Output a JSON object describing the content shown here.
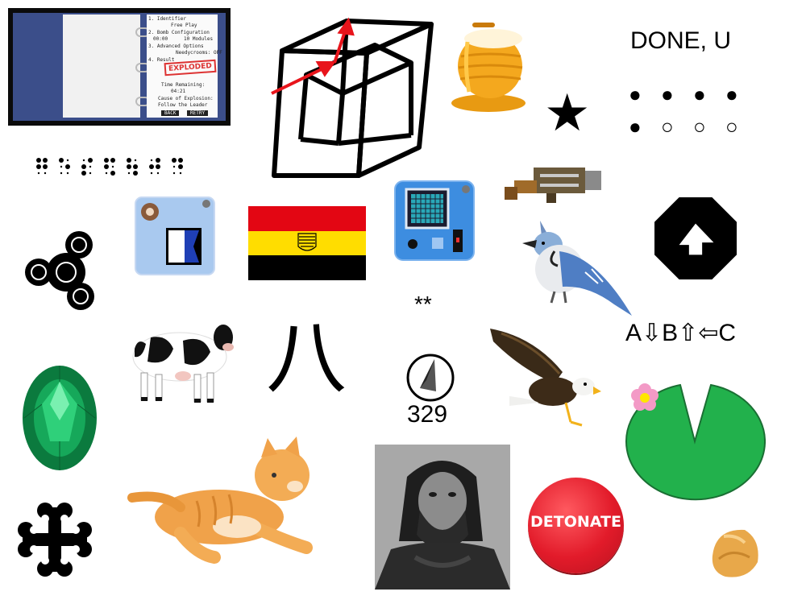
{
  "colors": {
    "flag_red": "#e30613",
    "flag_yellow": "#ffdd00",
    "flag_black": "#000000",
    "lilypad_green": "#22b14c",
    "button_red": "#e21b2a",
    "emerald": "#0f8a4a",
    "honey": "#f5a623"
  },
  "binder": {
    "line1": "1. Identifier",
    "line2": "Free Play",
    "line3": "2. Bomb Configuration",
    "line4": "00:00",
    "line5": "10 Modules",
    "line6": "3. Advanced Options",
    "line7": "Needycrooms: OFF",
    "line8": "4. Result",
    "stamp": "EXPLODED",
    "line9": "Time Remaining:",
    "line10": "04:21",
    "line11": "Cause of Explosion:",
    "line12": "Follow the Leader",
    "btn_back": "BACK",
    "btn_retry": "RETRY"
  },
  "done_text": "DONE, U",
  "asterisks": "**",
  "arrow_text": "A⇩B⇧⇦C",
  "kanji": "八",
  "compass_number": "329",
  "detonate_label": "DETONATE",
  "icons": {
    "star": "★",
    "dot_filled": "●",
    "dot_empty": "○"
  }
}
